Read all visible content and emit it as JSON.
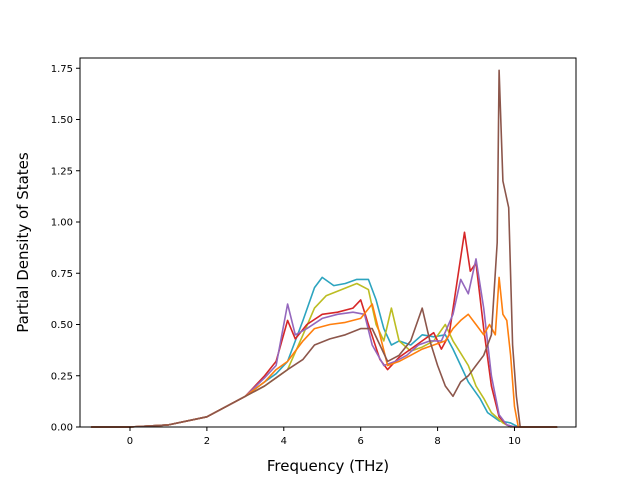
{
  "chart_data": {
    "type": "line",
    "title": "",
    "xlabel": "Frequency (THz)",
    "ylabel": "Partial Density of States",
    "xlim": [
      -1.3,
      11.6
    ],
    "ylim": [
      0,
      1.8
    ],
    "xticks": [
      0,
      2,
      4,
      6,
      8,
      10
    ],
    "xtick_labels": [
      "0",
      "2",
      "4",
      "6",
      "8",
      "10"
    ],
    "yticks": [
      0,
      0.25,
      0.5,
      0.75,
      1.0,
      1.25,
      1.5,
      1.75
    ],
    "ytick_labels": [
      "0.00",
      "0.25",
      "0.50",
      "0.75",
      "1.00",
      "1.25",
      "1.50",
      "1.75"
    ],
    "grid": false,
    "legend": "none",
    "series": [
      {
        "color": "#2ca4bf",
        "points": [
          [
            -1.0,
            0
          ],
          [
            0,
            0
          ],
          [
            1,
            0.01
          ],
          [
            2,
            0.05
          ],
          [
            3,
            0.15
          ],
          [
            3.5,
            0.22
          ],
          [
            3.8,
            0.26
          ],
          [
            4.1,
            0.32
          ],
          [
            4.5,
            0.52
          ],
          [
            4.8,
            0.68
          ],
          [
            5.0,
            0.73
          ],
          [
            5.3,
            0.69
          ],
          [
            5.6,
            0.7
          ],
          [
            5.9,
            0.72
          ],
          [
            6.2,
            0.72
          ],
          [
            6.4,
            0.62
          ],
          [
            6.6,
            0.48
          ],
          [
            6.8,
            0.4
          ],
          [
            7.0,
            0.42
          ],
          [
            7.3,
            0.4
          ],
          [
            7.6,
            0.45
          ],
          [
            7.9,
            0.44
          ],
          [
            8.2,
            0.45
          ],
          [
            8.4,
            0.38
          ],
          [
            8.6,
            0.3
          ],
          [
            8.8,
            0.22
          ],
          [
            9.1,
            0.14
          ],
          [
            9.3,
            0.07
          ],
          [
            9.6,
            0.03
          ],
          [
            9.9,
            0.02
          ],
          [
            10.1,
            0.0
          ],
          [
            11.1,
            0
          ]
        ]
      },
      {
        "color": "#bcbd22",
        "points": [
          [
            -1.0,
            0
          ],
          [
            0,
            0
          ],
          [
            1,
            0.01
          ],
          [
            2,
            0.05
          ],
          [
            3,
            0.15
          ],
          [
            3.5,
            0.2
          ],
          [
            3.8,
            0.24
          ],
          [
            4.1,
            0.28
          ],
          [
            4.5,
            0.45
          ],
          [
            4.8,
            0.58
          ],
          [
            5.1,
            0.64
          ],
          [
            5.5,
            0.67
          ],
          [
            5.9,
            0.7
          ],
          [
            6.2,
            0.67
          ],
          [
            6.4,
            0.5
          ],
          [
            6.6,
            0.42
          ],
          [
            6.8,
            0.58
          ],
          [
            7.0,
            0.42
          ],
          [
            7.3,
            0.37
          ],
          [
            7.6,
            0.39
          ],
          [
            7.9,
            0.42
          ],
          [
            8.2,
            0.5
          ],
          [
            8.4,
            0.42
          ],
          [
            8.6,
            0.36
          ],
          [
            8.8,
            0.3
          ],
          [
            9.0,
            0.2
          ],
          [
            9.2,
            0.14
          ],
          [
            9.4,
            0.07
          ],
          [
            9.7,
            0.02
          ],
          [
            9.9,
            0.0
          ],
          [
            11.1,
            0
          ]
        ]
      },
      {
        "color": "#d62728",
        "points": [
          [
            -1.0,
            0
          ],
          [
            0,
            0
          ],
          [
            1,
            0.01
          ],
          [
            2,
            0.05
          ],
          [
            3,
            0.15
          ],
          [
            3.5,
            0.25
          ],
          [
            3.8,
            0.32
          ],
          [
            4.1,
            0.52
          ],
          [
            4.3,
            0.43
          ],
          [
            4.6,
            0.5
          ],
          [
            5.0,
            0.55
          ],
          [
            5.4,
            0.56
          ],
          [
            5.8,
            0.58
          ],
          [
            6.0,
            0.62
          ],
          [
            6.2,
            0.5
          ],
          [
            6.5,
            0.33
          ],
          [
            6.7,
            0.28
          ],
          [
            7.0,
            0.34
          ],
          [
            7.3,
            0.38
          ],
          [
            7.6,
            0.42
          ],
          [
            7.9,
            0.46
          ],
          [
            8.1,
            0.38
          ],
          [
            8.3,
            0.45
          ],
          [
            8.5,
            0.7
          ],
          [
            8.7,
            0.95
          ],
          [
            8.85,
            0.76
          ],
          [
            9.0,
            0.8
          ],
          [
            9.2,
            0.48
          ],
          [
            9.4,
            0.2
          ],
          [
            9.6,
            0.05
          ],
          [
            9.8,
            0.01
          ],
          [
            10.0,
            0.0
          ],
          [
            11.1,
            0
          ]
        ]
      },
      {
        "color": "#9467bd",
        "points": [
          [
            -1.0,
            0
          ],
          [
            0,
            0
          ],
          [
            1,
            0.01
          ],
          [
            2,
            0.05
          ],
          [
            3,
            0.15
          ],
          [
            3.5,
            0.24
          ],
          [
            3.8,
            0.3
          ],
          [
            4.1,
            0.6
          ],
          [
            4.3,
            0.45
          ],
          [
            4.6,
            0.48
          ],
          [
            5.0,
            0.53
          ],
          [
            5.4,
            0.55
          ],
          [
            5.8,
            0.56
          ],
          [
            6.1,
            0.55
          ],
          [
            6.3,
            0.4
          ],
          [
            6.6,
            0.3
          ],
          [
            6.9,
            0.32
          ],
          [
            7.2,
            0.35
          ],
          [
            7.5,
            0.4
          ],
          [
            7.8,
            0.42
          ],
          [
            8.1,
            0.42
          ],
          [
            8.4,
            0.55
          ],
          [
            8.6,
            0.72
          ],
          [
            8.8,
            0.65
          ],
          [
            9.0,
            0.82
          ],
          [
            9.2,
            0.58
          ],
          [
            9.4,
            0.25
          ],
          [
            9.6,
            0.06
          ],
          [
            9.8,
            0.01
          ],
          [
            10.0,
            0.0
          ],
          [
            11.1,
            0
          ]
        ]
      },
      {
        "color": "#ff7f0e",
        "points": [
          [
            -1.0,
            0
          ],
          [
            0,
            0
          ],
          [
            1,
            0.01
          ],
          [
            2,
            0.05
          ],
          [
            3,
            0.15
          ],
          [
            3.5,
            0.22
          ],
          [
            3.8,
            0.28
          ],
          [
            4.1,
            0.32
          ],
          [
            4.5,
            0.42
          ],
          [
            4.8,
            0.48
          ],
          [
            5.2,
            0.5
          ],
          [
            5.6,
            0.51
          ],
          [
            6.0,
            0.53
          ],
          [
            6.3,
            0.6
          ],
          [
            6.5,
            0.45
          ],
          [
            6.7,
            0.3
          ],
          [
            7.0,
            0.32
          ],
          [
            7.3,
            0.35
          ],
          [
            7.6,
            0.38
          ],
          [
            7.9,
            0.4
          ],
          [
            8.2,
            0.42
          ],
          [
            8.4,
            0.48
          ],
          [
            8.6,
            0.52
          ],
          [
            8.8,
            0.55
          ],
          [
            9.0,
            0.5
          ],
          [
            9.2,
            0.45
          ],
          [
            9.35,
            0.5
          ],
          [
            9.5,
            0.45
          ],
          [
            9.6,
            0.73
          ],
          [
            9.7,
            0.55
          ],
          [
            9.8,
            0.52
          ],
          [
            9.9,
            0.35
          ],
          [
            10.0,
            0.1
          ],
          [
            10.1,
            0.0
          ],
          [
            11.1,
            0
          ]
        ]
      },
      {
        "color": "#8c564b",
        "points": [
          [
            -1.0,
            0
          ],
          [
            0,
            0
          ],
          [
            1,
            0.01
          ],
          [
            2,
            0.05
          ],
          [
            3,
            0.15
          ],
          [
            3.5,
            0.2
          ],
          [
            3.8,
            0.24
          ],
          [
            4.1,
            0.28
          ],
          [
            4.5,
            0.33
          ],
          [
            4.8,
            0.4
          ],
          [
            5.2,
            0.43
          ],
          [
            5.6,
            0.45
          ],
          [
            6.0,
            0.48
          ],
          [
            6.3,
            0.48
          ],
          [
            6.5,
            0.4
          ],
          [
            6.7,
            0.32
          ],
          [
            7.0,
            0.35
          ],
          [
            7.3,
            0.42
          ],
          [
            7.6,
            0.58
          ],
          [
            7.8,
            0.42
          ],
          [
            8.0,
            0.3
          ],
          [
            8.2,
            0.2
          ],
          [
            8.4,
            0.15
          ],
          [
            8.6,
            0.22
          ],
          [
            8.8,
            0.25
          ],
          [
            9.0,
            0.3
          ],
          [
            9.2,
            0.35
          ],
          [
            9.4,
            0.45
          ],
          [
            9.55,
            0.9
          ],
          [
            9.6,
            1.74
          ],
          [
            9.7,
            1.2
          ],
          [
            9.85,
            1.07
          ],
          [
            9.95,
            0.4
          ],
          [
            10.05,
            0.15
          ],
          [
            10.15,
            0.0
          ],
          [
            11.1,
            0
          ]
        ]
      }
    ]
  }
}
